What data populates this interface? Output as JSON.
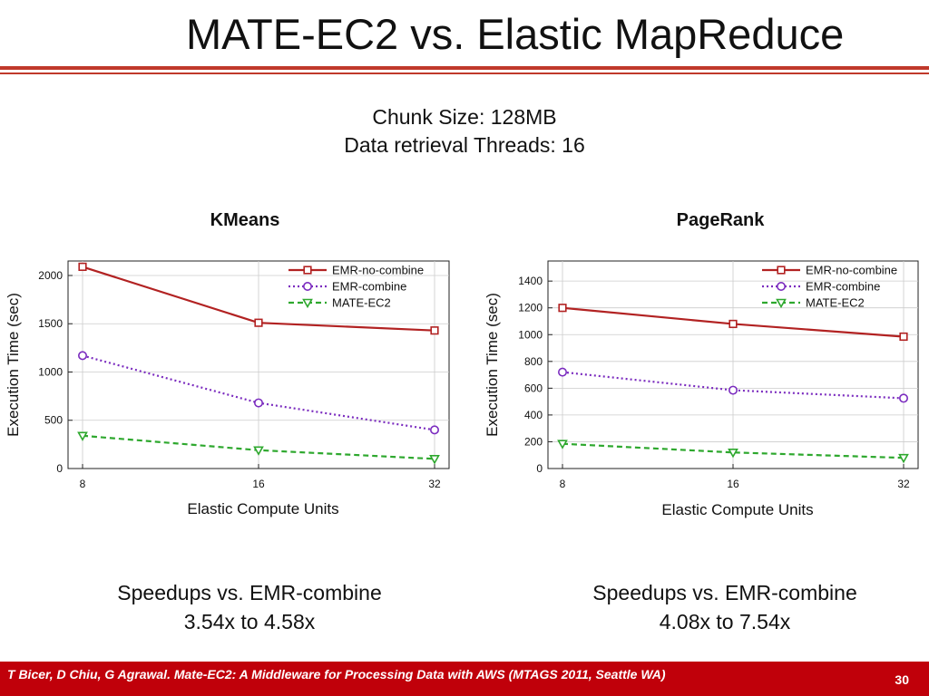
{
  "slide": {
    "title": "MATE-EC2 vs. Elastic MapReduce",
    "subtitle_line1": "Chunk Size: 128MB",
    "subtitle_line2": "Data retrieval Threads: 16"
  },
  "colors": {
    "accent": "#c0392b",
    "footer_bg": "#c0000a",
    "emr_no_combine": "#b22222",
    "emr_combine": "#7b2cbf",
    "mate_ec2": "#2ea82e"
  },
  "chart_data": [
    {
      "type": "line",
      "title": "KMeans",
      "xlabel": "Elastic Compute Units",
      "ylabel": "Execution Time (sec)",
      "x": [
        8,
        16,
        32
      ],
      "x_tick_labels": [
        "8",
        "16",
        "32"
      ],
      "ylim": [
        0,
        2150
      ],
      "y_ticks": [
        0,
        500,
        1000,
        1500,
        2000
      ],
      "grid": true,
      "legend": "top-right",
      "series": [
        {
          "name": "EMR-no-combine",
          "values": [
            2090,
            1510,
            1430
          ],
          "marker": "square",
          "dash": "solid",
          "color": "#b22222"
        },
        {
          "name": "EMR-combine",
          "values": [
            1170,
            680,
            400
          ],
          "marker": "circle",
          "dash": "dotted",
          "color": "#7b2cbf"
        },
        {
          "name": "MATE-EC2",
          "values": [
            340,
            190,
            100
          ],
          "marker": "triangle-down",
          "dash": "dashed",
          "color": "#2ea82e"
        }
      ]
    },
    {
      "type": "line",
      "title": "PageRank",
      "xlabel": "Elastic Compute Units",
      "ylabel": "Execution Time (sec)",
      "x": [
        8,
        16,
        32
      ],
      "x_tick_labels": [
        "8",
        "16",
        "32"
      ],
      "ylim": [
        0,
        1550
      ],
      "y_ticks": [
        0,
        200,
        400,
        600,
        800,
        1000,
        1200,
        1400
      ],
      "grid": true,
      "legend": "top-right",
      "series": [
        {
          "name": "EMR-no-combine",
          "values": [
            1200,
            1080,
            985
          ],
          "marker": "square",
          "dash": "solid",
          "color": "#b22222"
        },
        {
          "name": "EMR-combine",
          "values": [
            720,
            585,
            525
          ],
          "marker": "circle",
          "dash": "dotted",
          "color": "#7b2cbf"
        },
        {
          "name": "MATE-EC2",
          "values": [
            185,
            120,
            80
          ],
          "marker": "triangle-down",
          "dash": "dashed",
          "color": "#2ea82e"
        }
      ]
    }
  ],
  "speedups": {
    "left_title": "Speedups vs. EMR-combine",
    "left_value": "3.54x to 4.58x",
    "right_title": "Speedups vs. EMR-combine",
    "right_value": "4.08x to 7.54x"
  },
  "footer": {
    "citation": "T Bicer, D Chiu, G Agrawal. Mate-EC2: A Middleware for Processing Data with AWS (MTAGS 2011, Seattle WA)",
    "page_number": "30"
  }
}
